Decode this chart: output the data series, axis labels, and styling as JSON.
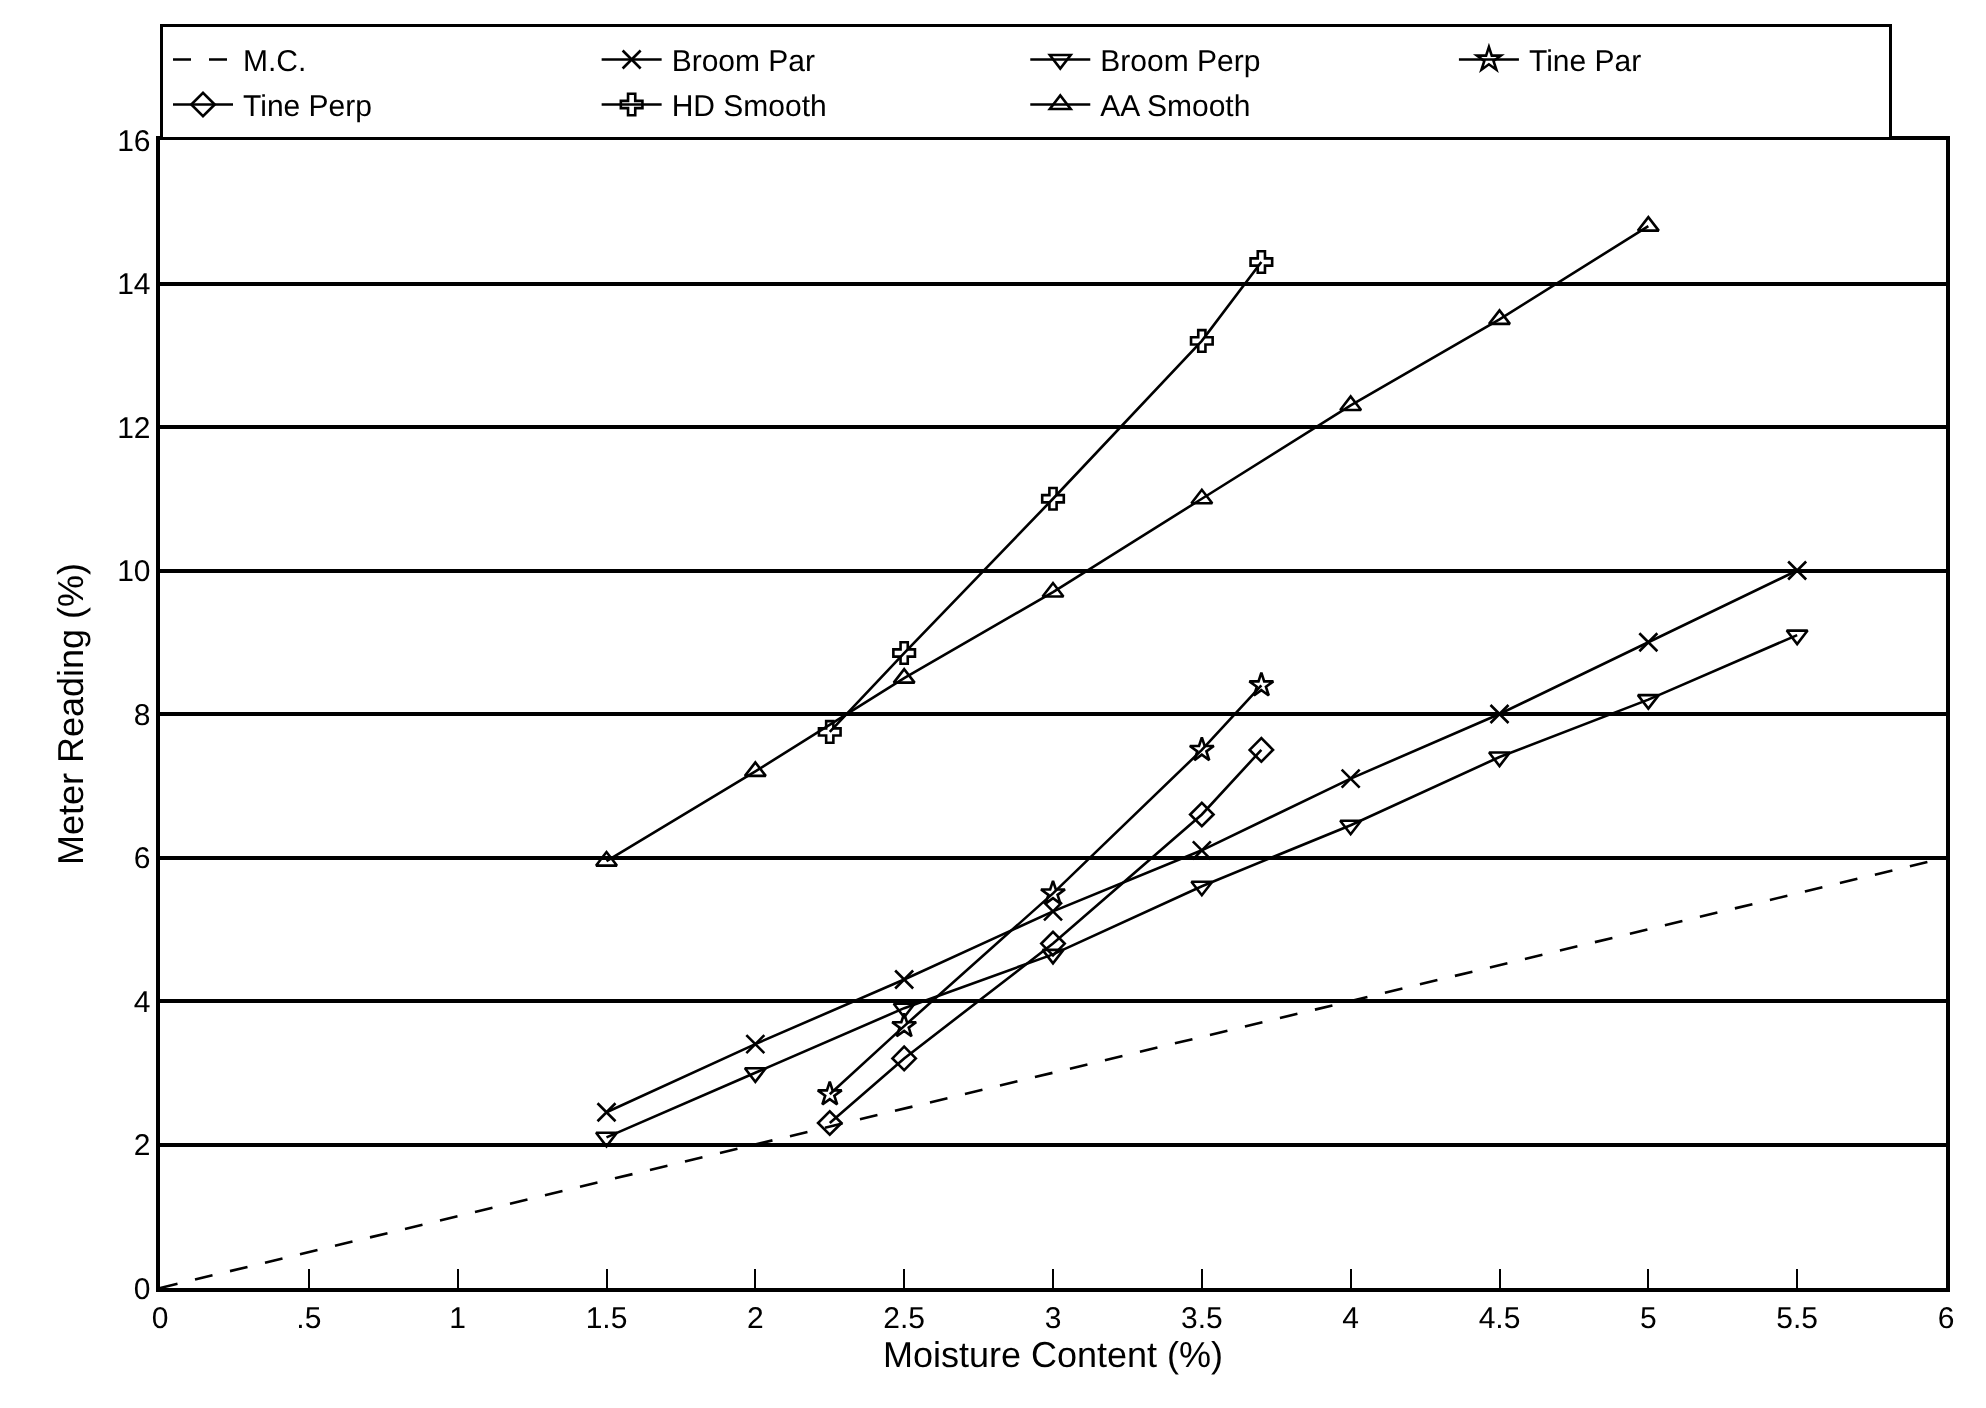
{
  "chart_data": {
    "type": "line",
    "xlabel": "Moisture Content (%)",
    "ylabel": "Meter Reading (%)",
    "xlim": [
      0,
      6
    ],
    "ylim": [
      0,
      16
    ],
    "xticks": [
      0,
      {
        "value": 0.5,
        "label": ".5"
      },
      1,
      1.5,
      2,
      2.5,
      3,
      3.5,
      4,
      4.5,
      5,
      5.5,
      6
    ],
    "yticks": [
      0,
      2,
      4,
      6,
      8,
      10,
      12,
      14,
      16
    ],
    "grid": "y",
    "legend": "top",
    "series": [
      {
        "name": "M.C.",
        "color": "#000000",
        "x": [
          0,
          6
        ],
        "values": [
          0,
          6
        ],
        "marker": "none",
        "line_style": "dashed"
      },
      {
        "name": "Broom Par",
        "color": "#000000",
        "x": [
          1.5,
          2,
          2.5,
          3,
          3.5,
          4,
          4.5,
          5,
          5.5
        ],
        "values": [
          2.45,
          3.4,
          4.3,
          5.25,
          6.1,
          7.1,
          8.0,
          9.0,
          10.0
        ],
        "marker": "cross",
        "line_style": "solid"
      },
      {
        "name": "Broom Perp",
        "color": "#000000",
        "x": [
          1.5,
          2,
          2.5,
          3,
          3.5,
          4,
          4.5,
          5,
          5.5
        ],
        "values": [
          2.1,
          3.0,
          3.9,
          4.65,
          5.6,
          6.45,
          7.4,
          8.2,
          9.1
        ],
        "marker": "triangle-down",
        "line_style": "solid"
      },
      {
        "name": "Tine Par",
        "color": "#000000",
        "x": [
          2.25,
          2.5,
          3,
          3.5,
          3.7
        ],
        "values": [
          2.7,
          3.65,
          5.5,
          7.5,
          8.4
        ],
        "marker": "star",
        "line_style": "solid"
      },
      {
        "name": "Tine Perp",
        "color": "#000000",
        "x": [
          2.25,
          2.5,
          3,
          3.5,
          3.7
        ],
        "values": [
          2.3,
          3.2,
          4.8,
          6.6,
          7.5
        ],
        "marker": "diamond",
        "line_style": "solid"
      },
      {
        "name": "HD Smooth",
        "color": "#000000",
        "x": [
          2.25,
          2.5,
          3,
          3.5,
          3.7
        ],
        "values": [
          7.75,
          8.85,
          11.0,
          13.2,
          14.3
        ],
        "marker": "plus",
        "line_style": "solid"
      },
      {
        "name": "AA Smooth",
        "color": "#000000",
        "x": [
          1.5,
          2,
          2.5,
          3,
          3.5,
          4,
          4.5,
          5
        ],
        "values": [
          5.95,
          7.2,
          8.5,
          9.7,
          11.0,
          12.3,
          13.5,
          14.8
        ],
        "marker": "triangle",
        "line_style": "solid"
      }
    ]
  }
}
